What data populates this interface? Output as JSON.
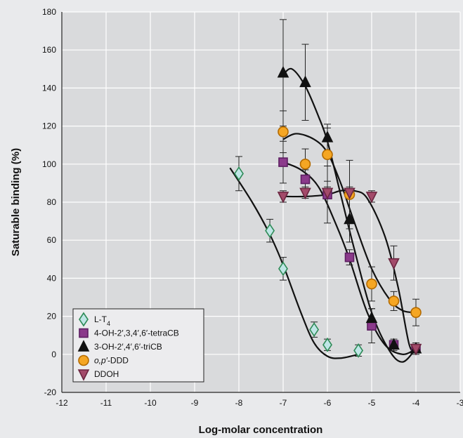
{
  "chart_data": {
    "type": "scatter",
    "title": "",
    "xlabel": "Log-molar concentration",
    "ylabel": "Saturable binding (%)",
    "xlim": [
      -12,
      -3
    ],
    "ylim": [
      -20,
      180
    ],
    "x_ticks": [
      -12,
      -11,
      -10,
      -9,
      -8,
      -7,
      -6,
      -5,
      -4,
      -3
    ],
    "y_ticks": [
      -20,
      0,
      20,
      40,
      60,
      80,
      100,
      120,
      140,
      160,
      180
    ],
    "grid": true,
    "legend_position": "bottom-left",
    "series": [
      {
        "name": "L-T",
        "name_sub": "4",
        "marker": "diamond",
        "color": "#bfe6e6",
        "stroke": "#2e8b57",
        "points": [
          {
            "x": -8.0,
            "y": 95,
            "err": 9
          },
          {
            "x": -7.3,
            "y": 65,
            "err": 6
          },
          {
            "x": -7.0,
            "y": 45,
            "err": 6
          },
          {
            "x": -6.3,
            "y": 13,
            "err": 4
          },
          {
            "x": -6.0,
            "y": 5,
            "err": 3
          },
          {
            "x": -5.3,
            "y": 2,
            "err": 3
          }
        ],
        "curve": [
          [
            -8.2,
            98
          ],
          [
            -7.7,
            80
          ],
          [
            -7.3,
            63
          ],
          [
            -7.0,
            47
          ],
          [
            -6.6,
            22
          ],
          [
            -6.3,
            6
          ],
          [
            -6.0,
            -1
          ],
          [
            -5.7,
            -2
          ],
          [
            -5.3,
            0
          ]
        ]
      },
      {
        "name": "4-OH-2′,3,4′,6′-tetraCB",
        "marker": "square",
        "color": "#8b3a8b",
        "stroke": "#5e1f63",
        "points": [
          {
            "x": -7.0,
            "y": 101,
            "err": 11
          },
          {
            "x": -6.5,
            "y": 92,
            "err": 5
          },
          {
            "x": -6.0,
            "y": 84,
            "err": 15
          },
          {
            "x": -5.5,
            "y": 51,
            "err": 4
          },
          {
            "x": -5.0,
            "y": 15,
            "err": 9
          },
          {
            "x": -4.5,
            "y": 5,
            "err": 3
          },
          {
            "x": -4.0,
            "y": 3,
            "err": 3
          }
        ],
        "curve": [
          [
            -7.0,
            101
          ],
          [
            -6.6,
            97
          ],
          [
            -6.2,
            88
          ],
          [
            -5.8,
            68
          ],
          [
            -5.5,
            50
          ],
          [
            -5.1,
            22
          ],
          [
            -4.7,
            5
          ],
          [
            -4.3,
            0
          ],
          [
            -4.0,
            3
          ]
        ]
      },
      {
        "name": "3-OH-2′,4′,6′-triCB",
        "marker": "triangle",
        "color": "#111111",
        "stroke": "#111111",
        "points": [
          {
            "x": -7.0,
            "y": 148,
            "err": 28
          },
          {
            "x": -6.5,
            "y": 143,
            "err": 20
          },
          {
            "x": -6.0,
            "y": 114,
            "err": 7
          },
          {
            "x": -5.5,
            "y": 71,
            "err": 12
          },
          {
            "x": -5.0,
            "y": 19,
            "err": 5
          },
          {
            "x": -4.5,
            "y": 5,
            "err": 2
          },
          {
            "x": -4.0,
            "y": 3,
            "err": 2
          }
        ],
        "curve": [
          [
            -7.0,
            147
          ],
          [
            -6.8,
            150
          ],
          [
            -6.5,
            141
          ],
          [
            -6.2,
            125
          ],
          [
            -6.0,
            112
          ],
          [
            -5.7,
            84
          ],
          [
            -5.4,
            56
          ],
          [
            -5.0,
            22
          ],
          [
            -4.6,
            2
          ],
          [
            -4.3,
            -4
          ],
          [
            -4.0,
            3
          ]
        ]
      },
      {
        "name": "o,p′-DDD",
        "name_italic_part": "o,p′",
        "name_rest": "-DDD",
        "marker": "circle",
        "color": "#f5a623",
        "stroke": "#b36a00",
        "points": [
          {
            "x": -7.0,
            "y": 117,
            "err": 11
          },
          {
            "x": -6.5,
            "y": 100,
            "err": 8
          },
          {
            "x": -6.0,
            "y": 105,
            "err": 14
          },
          {
            "x": -5.5,
            "y": 84,
            "err": 18
          },
          {
            "x": -5.0,
            "y": 37,
            "err": 9
          },
          {
            "x": -4.5,
            "y": 28,
            "err": 5
          },
          {
            "x": -4.0,
            "y": 22,
            "err": 7
          }
        ],
        "curve": [
          [
            -7.0,
            113
          ],
          [
            -6.7,
            116
          ],
          [
            -6.3,
            113
          ],
          [
            -6.0,
            106
          ],
          [
            -5.7,
            90
          ],
          [
            -5.4,
            70
          ],
          [
            -5.0,
            45
          ],
          [
            -4.6,
            29
          ],
          [
            -4.3,
            23
          ],
          [
            -4.0,
            22
          ]
        ]
      },
      {
        "name": "DDOH",
        "marker": "triangle-down",
        "color": "#a34a6a",
        "stroke": "#6b2640",
        "points": [
          {
            "x": -7.0,
            "y": 83,
            "err": 3
          },
          {
            "x": -6.5,
            "y": 85,
            "err": 3
          },
          {
            "x": -6.0,
            "y": 85,
            "err": 3
          },
          {
            "x": -5.5,
            "y": 85,
            "err": 3
          },
          {
            "x": -5.0,
            "y": 83,
            "err": 3
          },
          {
            "x": -4.5,
            "y": 48,
            "err": 9
          },
          {
            "x": -4.0,
            "y": 3,
            "err": 2
          }
        ],
        "curve": [
          [
            -7.0,
            83
          ],
          [
            -6.5,
            83
          ],
          [
            -6.0,
            84
          ],
          [
            -5.7,
            86
          ],
          [
            -5.4,
            86
          ],
          [
            -5.1,
            82
          ],
          [
            -4.7,
            62
          ],
          [
            -4.4,
            35
          ],
          [
            -4.15,
            5
          ],
          [
            -4.0,
            2
          ]
        ]
      }
    ]
  }
}
